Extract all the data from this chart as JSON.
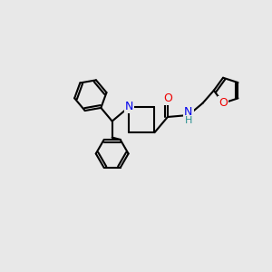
{
  "background_color": "#e8e8e8",
  "atom_colors": {
    "C": "#000000",
    "N": "#0000ee",
    "O": "#ee0000",
    "NH": "#2a9090"
  },
  "bond_color": "#000000",
  "bond_width": 1.5,
  "figsize": [
    3.0,
    3.0
  ],
  "dpi": 100,
  "xlim": [
    -2.2,
    2.4
  ],
  "ylim": [
    -2.0,
    1.6
  ]
}
